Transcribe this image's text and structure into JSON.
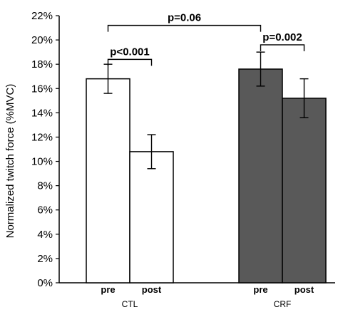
{
  "chart_data": {
    "type": "bar",
    "ylabel": "Normalized twitch force (%MVC)",
    "ylim": [
      0,
      22
    ],
    "y_ticks": [
      "0%",
      "2%",
      "4%",
      "6%",
      "8%",
      "10%",
      "12%",
      "14%",
      "16%",
      "18%",
      "20%",
      "22%"
    ],
    "y_tick_values": [
      0,
      2,
      4,
      6,
      8,
      10,
      12,
      14,
      16,
      18,
      20,
      22
    ],
    "grid": false,
    "groups": [
      {
        "name": "CTL",
        "bars": [
          {
            "label": "pre",
            "value": 16.8,
            "error": 1.2,
            "color": "#ffffff"
          },
          {
            "label": "post",
            "value": 10.8,
            "error": 1.4,
            "color": "#ffffff"
          }
        ]
      },
      {
        "name": "CRF",
        "bars": [
          {
            "label": "pre",
            "value": 17.6,
            "error": 1.4,
            "color": "#595959"
          },
          {
            "label": "post",
            "value": 15.2,
            "error": 1.6,
            "color": "#595959"
          }
        ]
      }
    ],
    "annotations": [
      {
        "text": "p<0.001",
        "from": [
          0,
          0
        ],
        "to": [
          0,
          1
        ],
        "level": 18.4
      },
      {
        "text": "p=0.002",
        "from": [
          1,
          0
        ],
        "to": [
          1,
          1
        ],
        "level": 19.6
      },
      {
        "text": "p=0.06",
        "from": [
          0,
          0
        ],
        "to": [
          1,
          0
        ],
        "level": 21.2
      }
    ]
  }
}
